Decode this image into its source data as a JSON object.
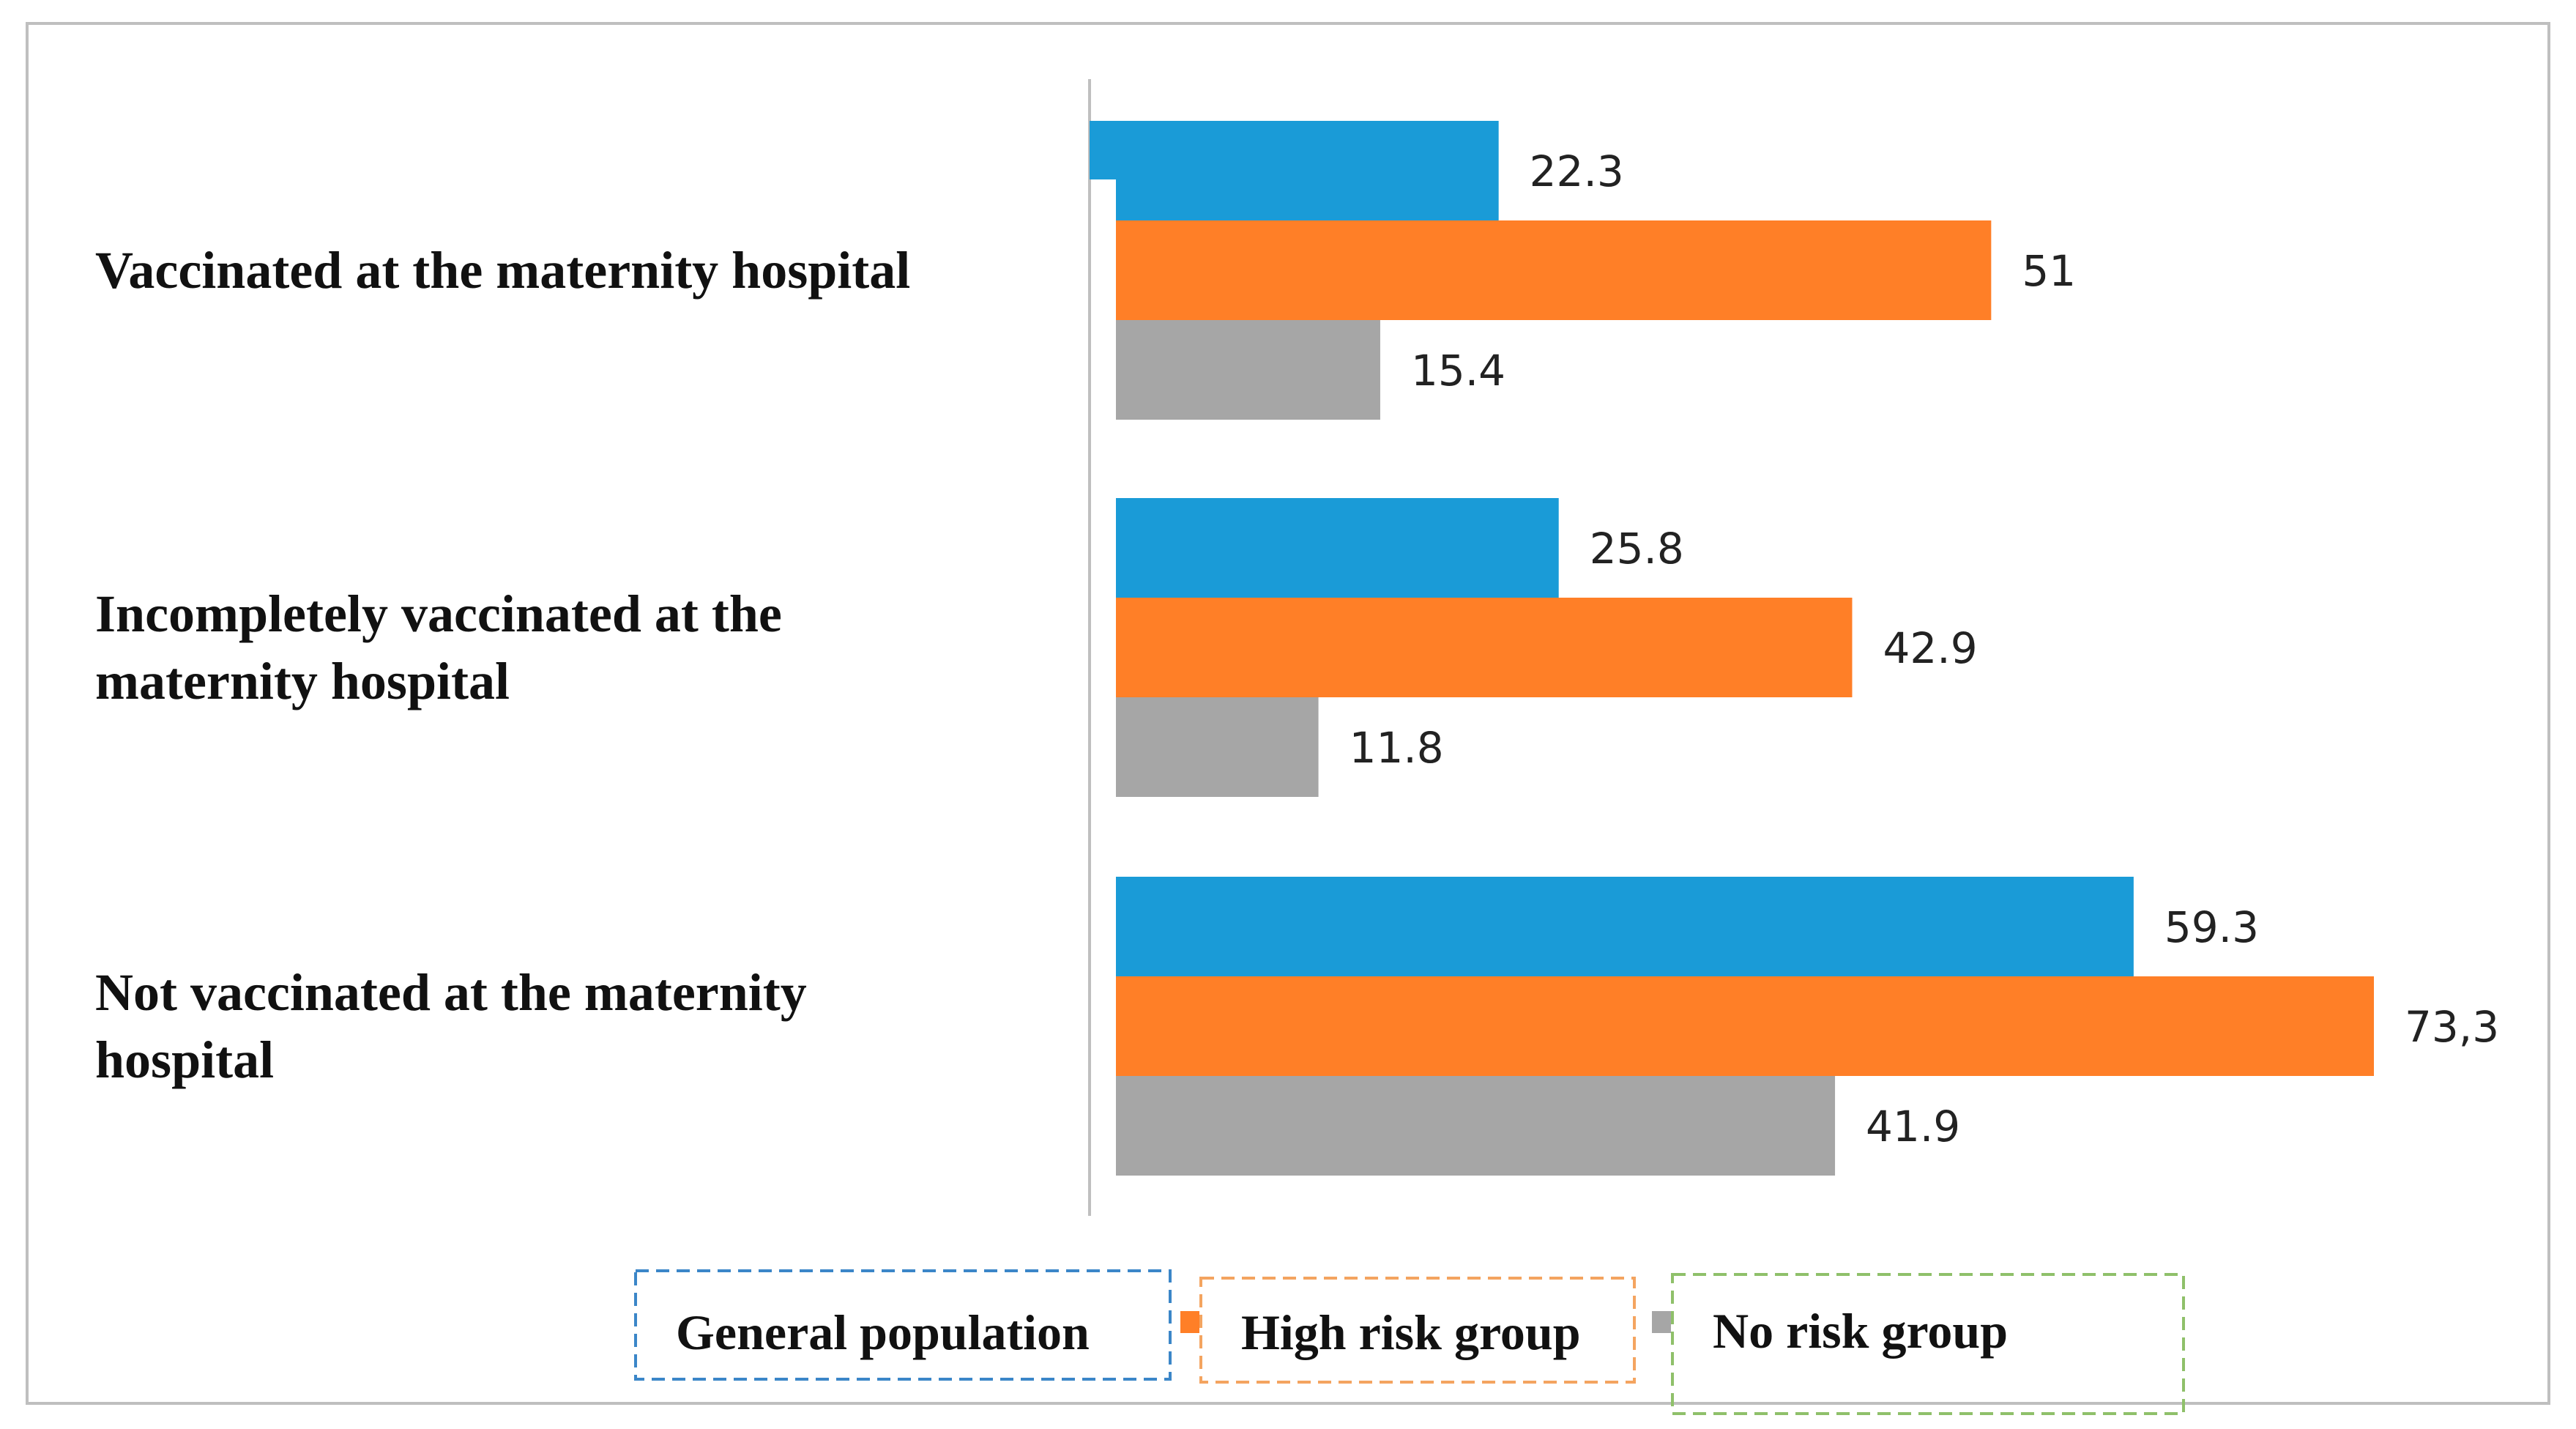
{
  "chart_data": {
    "type": "bar",
    "orientation": "horizontal",
    "title": "",
    "xlabel": "",
    "ylabel": "",
    "xlim": [
      0,
      78
    ],
    "grid": false,
    "categories": [
      [
        "Vaccinated at the maternity hospital"
      ],
      [
        "Incompletely vaccinated at the",
        "maternity hospital"
      ],
      [
        "Not vaccinated at the maternity",
        "hospital"
      ]
    ],
    "series": [
      {
        "name": "General population",
        "color": "#1a9bd7",
        "values": [
          22.3,
          25.8,
          59.3
        ],
        "labels": [
          "22.3",
          "25.8",
          "59.3"
        ]
      },
      {
        "name": "High risk group",
        "color": "#ff7f27",
        "values": [
          51,
          42.9,
          73.3
        ],
        "labels": [
          "51",
          "42.9",
          "73,3"
        ]
      },
      {
        "name": "No risk group",
        "color": "#a6a6a6",
        "values": [
          15.4,
          11.8,
          41.9
        ],
        "labels": [
          "15.4",
          "11.8",
          "41.9"
        ]
      }
    ],
    "legend": {
      "placement": "bottom",
      "border_colors": [
        "#3b86c8",
        "#f4a460",
        "#8fc06a"
      ]
    },
    "axis_color": "#bfbfbf"
  }
}
